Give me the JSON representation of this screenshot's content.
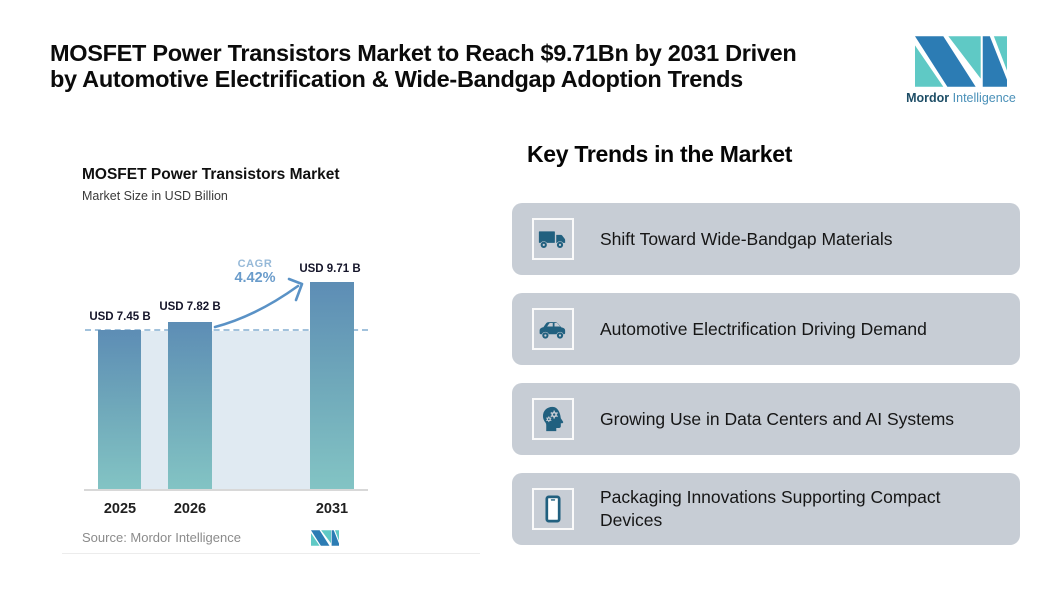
{
  "header": {
    "title_line1": "MOSFET Power Transistors Market to Reach $9.71Bn by 2031 Driven",
    "title_line2": "by Automotive Electrification & Wide-Bandgap Adoption Trends"
  },
  "brand": {
    "name_bold": "Mordor",
    "name_light": "Intelligence"
  },
  "chart": {
    "title": "MOSFET Power Transistors Market",
    "subtitle": "Market Size in USD Billion",
    "cagr_label": "CAGR",
    "cagr_value": "4.42%",
    "source": "Source: Mordor Intelligence"
  },
  "chart_data": {
    "type": "bar",
    "title": "MOSFET Power Transistors Market",
    "ylabel": "Market Size in USD Billion",
    "categories": [
      "2025",
      "2026",
      "2031"
    ],
    "values": [
      7.45,
      7.82,
      9.71
    ],
    "value_labels": [
      "USD 7.45 B",
      "USD 7.82 B",
      "USD 9.71 B"
    ],
    "ylim": [
      0,
      9.71
    ],
    "grid": false,
    "annotations": {
      "cagr": "4.42%",
      "cagr_arrow": "from 2026 bar to 2031 bar",
      "dashed_reference_level": 7.45,
      "shaded_band_below_dash": true
    },
    "legend": "none"
  },
  "trends": {
    "heading": "Key Trends in the Market",
    "items": [
      {
        "icon": "truck-icon",
        "label": "Shift Toward Wide-Bandgap Materials"
      },
      {
        "icon": "car-icon",
        "label": "Automotive Electrification Driving Demand"
      },
      {
        "icon": "ai-head-icon",
        "label": "Growing Use in Data Centers and AI Systems"
      },
      {
        "icon": "smartphone-icon",
        "label": "Packaging Innovations Supporting Compact Devices"
      }
    ]
  },
  "colors": {
    "background": "#ffffff",
    "card_bg": "#c7cdd5",
    "icon_blue": "#21607f",
    "brand_blue": "#2c7cb4",
    "brand_teal": "#5fc9c5",
    "bar_gradient_top": "#5d8db5",
    "bar_gradient_bottom": "#83c4c4",
    "band": "#e0eaf2",
    "dashed_line": "#a2c2dc",
    "arrow": "#5a92c6",
    "cagr_text": "#6a9ccb",
    "source_text": "#8b8b8b"
  }
}
